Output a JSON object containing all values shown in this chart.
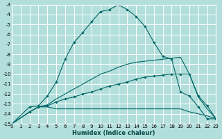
{
  "title": "",
  "xlabel": "Humidex (Indice chaleur)",
  "ylabel": "",
  "bg_color": "#b2dfdb",
  "grid_color": "#ffffff",
  "line_color": "#006666",
  "xlim": [
    0,
    23
  ],
  "ylim": [
    -15,
    -3
  ],
  "xticks": [
    0,
    1,
    2,
    3,
    4,
    5,
    6,
    7,
    8,
    9,
    10,
    11,
    12,
    13,
    14,
    15,
    16,
    17,
    18,
    19,
    20,
    21,
    22,
    23
  ],
  "yticks": [
    -15,
    -14,
    -13,
    -12,
    -11,
    -10,
    -9,
    -8,
    -7,
    -6,
    -5,
    -4,
    -3
  ],
  "lines": [
    {
      "x": [
        0,
        2,
        3,
        4,
        5,
        6,
        7,
        8,
        9,
        10,
        11,
        12,
        13,
        14,
        15,
        16,
        17,
        18,
        19,
        20,
        21,
        22,
        23
      ],
      "y": [
        -15,
        -13.3,
        -13.2,
        -12.2,
        -10.8,
        -8.5,
        -6.8,
        -5.8,
        -4.7,
        -3.7,
        -3.5,
        -3.0,
        -3.5,
        -4.2,
        -5.2,
        -6.8,
        -8.2,
        -8.5,
        -11.8,
        -12.2,
        -13.3,
        -14.5,
        -14.5
      ],
      "marker": true
    },
    {
      "x": [
        0,
        2,
        3,
        4,
        5,
        6,
        7,
        8,
        9,
        10,
        11,
        12,
        13,
        14,
        15,
        16,
        17,
        18,
        19,
        20,
        21,
        22,
        23
      ],
      "y": [
        -15,
        -13.8,
        -13.3,
        -13.3,
        -13.5,
        -13.5,
        -13.5,
        -13.5,
        -13.5,
        -13.5,
        -13.5,
        -13.5,
        -13.5,
        -13.5,
        -13.5,
        -13.5,
        -13.5,
        -13.5,
        -13.5,
        -13.8,
        -14.0,
        -14.2,
        -14.5
      ],
      "marker": false
    },
    {
      "x": [
        0,
        2,
        3,
        4,
        5,
        6,
        7,
        8,
        9,
        10,
        11,
        12,
        13,
        14,
        15,
        16,
        17,
        18,
        19,
        20,
        21,
        22,
        23
      ],
      "y": [
        -15,
        -13.8,
        -13.3,
        -13.1,
        -12.5,
        -12.0,
        -11.5,
        -11.0,
        -10.5,
        -10.0,
        -9.7,
        -9.3,
        -9.0,
        -8.8,
        -8.7,
        -8.6,
        -8.5,
        -8.4,
        -8.3,
        -10.0,
        -12.3,
        -13.5,
        -14.5
      ],
      "marker": false
    },
    {
      "x": [
        0,
        2,
        3,
        4,
        5,
        6,
        7,
        8,
        9,
        10,
        11,
        12,
        13,
        14,
        15,
        16,
        17,
        18,
        19,
        20,
        21,
        22,
        23
      ],
      "y": [
        -15,
        -13.8,
        -13.3,
        -13.2,
        -12.8,
        -12.5,
        -12.3,
        -12.0,
        -11.8,
        -11.5,
        -11.2,
        -11.0,
        -10.8,
        -10.5,
        -10.3,
        -10.2,
        -10.1,
        -10.0,
        -10.0,
        -10.0,
        -12.2,
        -13.2,
        -14.5
      ],
      "marker": true
    }
  ]
}
